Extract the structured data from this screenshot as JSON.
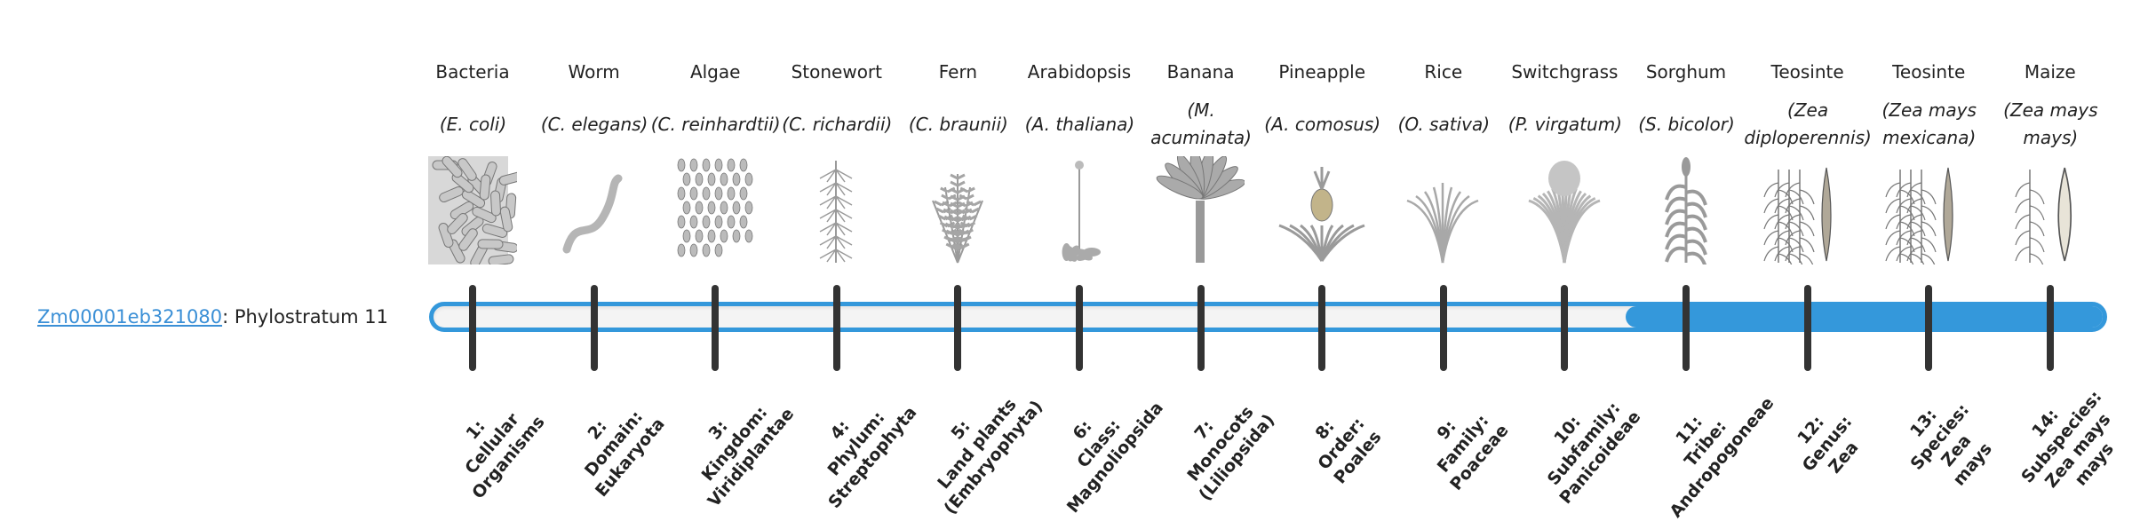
{
  "gene": {
    "id": "Zm00001eb321080",
    "separator": ": ",
    "text": "Phylostratum 11"
  },
  "current_phylostratum": 11,
  "colors": {
    "accent": "#3498db",
    "tick": "#333333",
    "track": "#f4f4f4",
    "link": "#3a8fd6"
  },
  "species": [
    {
      "name": "Bacteria",
      "sci": "(E. coli)",
      "icon": "bacteria-rods"
    },
    {
      "name": "Worm",
      "sci": "(C. elegans)",
      "icon": "worm"
    },
    {
      "name": "Algae",
      "sci": "(C. reinhardtii)",
      "icon": "algae-cells"
    },
    {
      "name": "Stonewort",
      "sci": "(C. richardii)",
      "icon": "stonewort"
    },
    {
      "name": "Fern",
      "sci": "(C. braunii)",
      "icon": "fern"
    },
    {
      "name": "Arabidopsis",
      "sci": "(A. thaliana)",
      "icon": "rosette-plant"
    },
    {
      "name": "Banana",
      "sci": "(M. acuminata)",
      "icon": "banana-plant"
    },
    {
      "name": "Pineapple",
      "sci": "(A. comosus)",
      "icon": "pineapple"
    },
    {
      "name": "Rice",
      "sci": "(O. sativa)",
      "icon": "grass"
    },
    {
      "name": "Switchgrass",
      "sci": "(P. virgatum)",
      "icon": "bushy-grass"
    },
    {
      "name": "Sorghum",
      "sci": "(S. bicolor)",
      "icon": "sorghum"
    },
    {
      "name": "Teosinte",
      "sci": "(Zea diploperennis)",
      "icon": "teosinte"
    },
    {
      "name": "Teosinte",
      "sci": "(Zea mays mexicana)",
      "icon": "teosinte"
    },
    {
      "name": "Maize",
      "sci": "(Zea mays mays)",
      "icon": "maize"
    }
  ],
  "phylostrata": [
    {
      "num": "1:",
      "lines": [
        "Cellular",
        "Organisms"
      ]
    },
    {
      "num": "2:",
      "lines": [
        "Domain:",
        "Eukaryota"
      ]
    },
    {
      "num": "3:",
      "lines": [
        "Kingdom:",
        "Viridiplantae"
      ]
    },
    {
      "num": "4:",
      "lines": [
        "Phylum:",
        "Streptophyta"
      ]
    },
    {
      "num": "5:",
      "lines": [
        "Land plants",
        "(Embryophyta)"
      ]
    },
    {
      "num": "6:",
      "lines": [
        "Class:",
        "Magnoliopsida"
      ]
    },
    {
      "num": "7:",
      "lines": [
        "Monocots",
        "(Liliopsida)"
      ]
    },
    {
      "num": "8:",
      "lines": [
        "Order:",
        "Poales"
      ]
    },
    {
      "num": "9:",
      "lines": [
        "Family:",
        "Poaceae"
      ]
    },
    {
      "num": "10:",
      "lines": [
        "Subfamily:",
        "Panicoideae"
      ]
    },
    {
      "num": "11:",
      "lines": [
        "Tribe:",
        "Andropogoneae"
      ]
    },
    {
      "num": "12:",
      "lines": [
        "Genus:",
        "Zea"
      ]
    },
    {
      "num": "13:",
      "lines": [
        "Species:",
        "Zea",
        "mays"
      ]
    },
    {
      "num": "14:",
      "lines": [
        "Subspecies:",
        "Zea mays",
        "mays"
      ]
    }
  ]
}
